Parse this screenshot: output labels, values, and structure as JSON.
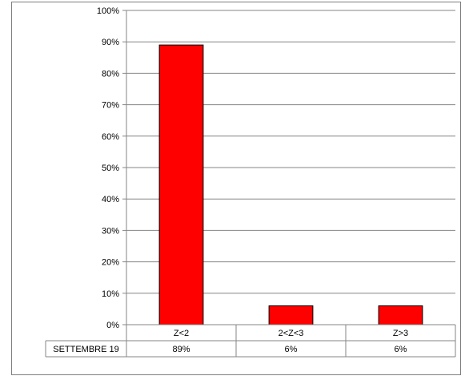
{
  "chart_data": {
    "type": "bar",
    "categories": [
      "Z<2",
      "2<Z<3",
      "Z>3"
    ],
    "series": [
      {
        "name": "SETTEMBRE 19",
        "values": [
          89,
          6,
          6
        ],
        "color": "#ff0000"
      }
    ],
    "data_table": {
      "row_label": "SETTEMBRE 19",
      "cells": [
        "89%",
        "6%",
        "6%"
      ]
    },
    "y_ticks": [
      "0%",
      "10%",
      "20%",
      "30%",
      "40%",
      "50%",
      "60%",
      "70%",
      "80%",
      "90%",
      "100%"
    ],
    "ylim": [
      0,
      100
    ],
    "grid": true,
    "legend": "none"
  }
}
